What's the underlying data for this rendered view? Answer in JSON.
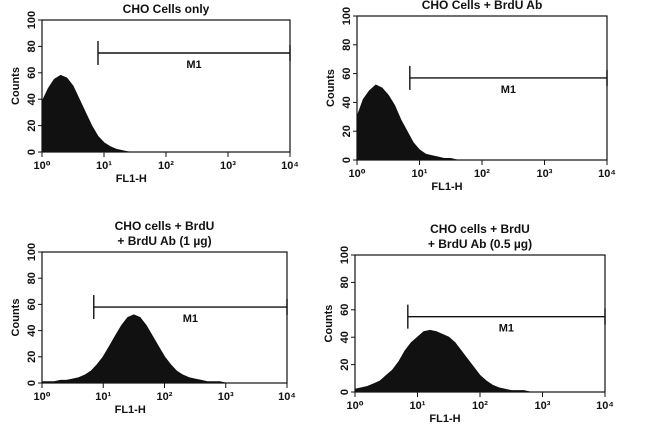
{
  "chart_data": [
    {
      "type": "area",
      "title": [
        "CHO Cells only"
      ],
      "xlabel": "FL1-H",
      "ylabel": "Counts",
      "log_x": true,
      "color": "#111111",
      "xlim": [
        1,
        10000
      ],
      "xticks": [
        {
          "value": 1,
          "label": "10⁰"
        },
        {
          "value": 10,
          "label": "10¹"
        },
        {
          "value": 100,
          "label": "10²"
        },
        {
          "value": 1000,
          "label": "10³"
        },
        {
          "value": 10000,
          "label": "10⁴"
        }
      ],
      "ylim": [
        0,
        100
      ],
      "yticks": [
        0,
        20,
        40,
        60,
        80,
        100
      ],
      "gate": {
        "label": "M1",
        "range": [
          8,
          10000
        ],
        "level": 75
      },
      "x": [
        1,
        1.26,
        1.58,
        2,
        2.51,
        3.16,
        3.98,
        5.01,
        6.31,
        7.94,
        10,
        12.6,
        15.8,
        20,
        25.1,
        31.6,
        39.8,
        50.1,
        63.1,
        79.4,
        100,
        126,
        158,
        200,
        251,
        316,
        398,
        501,
        631,
        794,
        1000,
        1259,
        1585,
        1995,
        2512,
        3162,
        3981,
        5012,
        6310,
        7943,
        10000
      ],
      "values": [
        38,
        48,
        55,
        58,
        56,
        50,
        40,
        30,
        20,
        12,
        7,
        4,
        2,
        1,
        0,
        0,
        0,
        0,
        0,
        0,
        0,
        0,
        0,
        0,
        0,
        0,
        0,
        0,
        0,
        0,
        0,
        0,
        0,
        0,
        0,
        0,
        0,
        0,
        0,
        0,
        0
      ]
    },
    {
      "type": "area",
      "title": [
        "CHO Cells + BrdU Ab"
      ],
      "xlabel": "FL1-H",
      "ylabel": "Counts",
      "log_x": true,
      "color": "#111111",
      "xlim": [
        1,
        10000
      ],
      "xticks": [
        {
          "value": 1,
          "label": "10⁰"
        },
        {
          "value": 10,
          "label": "10¹"
        },
        {
          "value": 100,
          "label": "10²"
        },
        {
          "value": 1000,
          "label": "10³"
        },
        {
          "value": 10000,
          "label": "10⁴"
        }
      ],
      "ylim": [
        0,
        100
      ],
      "yticks": [
        0,
        20,
        40,
        60,
        80,
        100
      ],
      "gate": {
        "label": "M1",
        "range": [
          7,
          10000
        ],
        "level": 57
      },
      "x": [
        1,
        1.26,
        1.58,
        2,
        2.51,
        3.16,
        3.98,
        5.01,
        6.31,
        7.94,
        10,
        12.6,
        15.8,
        20,
        25.1,
        31.6,
        39.8,
        50.1,
        63.1,
        79.4,
        100,
        126,
        158,
        200,
        251,
        316,
        398,
        501,
        631,
        794,
        1000,
        1259,
        1585,
        1995,
        2512,
        3162,
        3981,
        5012,
        6310,
        7943,
        10000
      ],
      "values": [
        30,
        42,
        48,
        52,
        50,
        45,
        38,
        28,
        20,
        12,
        7,
        4,
        3,
        2,
        1,
        1,
        0,
        0,
        0,
        0,
        0,
        0,
        0,
        0,
        0,
        0,
        0,
        0,
        0,
        0,
        0,
        0,
        0,
        0,
        0,
        0,
        0,
        0,
        0,
        0,
        0
      ]
    },
    {
      "type": "area",
      "title": [
        "CHO cells + BrdU",
        "+ BrdU Ab (1 µg)"
      ],
      "xlabel": "FL1-H",
      "ylabel": "Counts",
      "log_x": true,
      "color": "#111111",
      "xlim": [
        1,
        10000
      ],
      "xticks": [
        {
          "value": 1,
          "label": "10⁰"
        },
        {
          "value": 10,
          "label": "10¹"
        },
        {
          "value": 100,
          "label": "10²"
        },
        {
          "value": 1000,
          "label": "10³"
        },
        {
          "value": 10000,
          "label": "10⁴"
        }
      ],
      "ylim": [
        0,
        100
      ],
      "yticks": [
        0,
        20,
        40,
        60,
        80,
        100
      ],
      "gate": {
        "label": "M1",
        "range": [
          7,
          10000
        ],
        "level": 58
      },
      "x": [
        1,
        1.26,
        1.58,
        2,
        2.51,
        3.16,
        3.98,
        5.01,
        6.31,
        7.94,
        10,
        12.6,
        15.8,
        20,
        25.1,
        31.6,
        39.8,
        50.1,
        63.1,
        79.4,
        100,
        126,
        158,
        200,
        251,
        316,
        398,
        501,
        631,
        794,
        1000,
        1259,
        1585,
        1995,
        2512,
        3162,
        3981,
        5012,
        6310,
        7943,
        10000
      ],
      "values": [
        1,
        1,
        1,
        2,
        2,
        3,
        4,
        6,
        9,
        14,
        20,
        28,
        36,
        44,
        50,
        52,
        50,
        44,
        36,
        28,
        20,
        14,
        9,
        6,
        4,
        3,
        2,
        1,
        1,
        1,
        0,
        0,
        0,
        0,
        0,
        0,
        0,
        0,
        0,
        0,
        0
      ]
    },
    {
      "type": "area",
      "title": [
        "CHO cells + BrdU",
        "+ BrdU Ab (0.5 µg)"
      ],
      "xlabel": "FL1-H",
      "ylabel": "Counts",
      "log_x": true,
      "color": "#111111",
      "xlim": [
        1,
        10000
      ],
      "xticks": [
        {
          "value": 1,
          "label": "10⁰"
        },
        {
          "value": 10,
          "label": "10¹"
        },
        {
          "value": 100,
          "label": "10²"
        },
        {
          "value": 1000,
          "label": "10³"
        },
        {
          "value": 10000,
          "label": "10⁴"
        }
      ],
      "ylim": [
        0,
        100
      ],
      "yticks": [
        0,
        20,
        40,
        60,
        80,
        100
      ],
      "gate": {
        "label": "M1",
        "range": [
          7,
          10000
        ],
        "level": 55
      },
      "x": [
        1,
        1.26,
        1.58,
        2,
        2.51,
        3.16,
        3.98,
        5.01,
        6.31,
        7.94,
        10,
        12.6,
        15.8,
        20,
        25.1,
        31.6,
        39.8,
        50.1,
        63.1,
        79.4,
        100,
        126,
        158,
        200,
        251,
        316,
        398,
        501,
        631,
        794,
        1000,
        1259,
        1585,
        1995,
        2512,
        3162,
        3981,
        5012,
        6310,
        7943,
        10000
      ],
      "values": [
        2,
        3,
        4,
        6,
        8,
        12,
        16,
        22,
        30,
        36,
        40,
        44,
        45,
        44,
        42,
        40,
        36,
        30,
        24,
        18,
        12,
        8,
        5,
        3,
        2,
        1,
        1,
        1,
        0,
        0,
        0,
        0,
        0,
        0,
        0,
        0,
        0,
        0,
        0,
        0,
        0
      ]
    }
  ]
}
